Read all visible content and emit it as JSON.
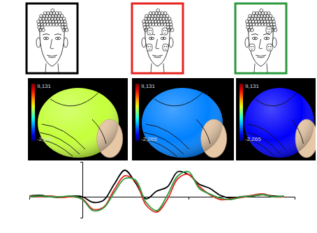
{
  "scalp_maps": {
    "color_min": {
      "value": -2.265,
      "label": "-2,265"
    },
    "color_max": {
      "value": 9.131,
      "label": "9,131"
    },
    "values": [
      4.2,
      0.6,
      -0.9
    ]
  },
  "chart_data": {
    "type": "line",
    "x": [
      -100,
      -80,
      -60,
      -40,
      -20,
      0,
      20,
      40,
      60,
      80,
      100,
      120,
      140,
      160,
      180,
      200,
      220,
      240,
      260,
      280,
      300,
      320,
      340,
      360,
      380
    ],
    "xlim": [
      -100,
      400
    ],
    "xticks": [
      200
    ],
    "ylim": [
      -3,
      5
    ],
    "yticks": [
      0
    ],
    "tick_labels": false,
    "series": [
      {
        "color": "#000000",
        "values": [
          0.1,
          0.2,
          0.0,
          -0.1,
          0.1,
          0.0,
          -0.8,
          -0.5,
          1.8,
          3.8,
          2.0,
          -0.3,
          0.8,
          1.4,
          3.6,
          3.2,
          1.8,
          1.2,
          0.2,
          -0.2,
          0.0,
          0.1,
          0.3,
          0.1,
          0.0
        ]
      },
      {
        "color": "#e8231f",
        "values": [
          0.1,
          0.0,
          0.1,
          -0.1,
          0.0,
          -0.3,
          -1.8,
          -1.5,
          1.0,
          3.0,
          2.2,
          -1.2,
          -2.2,
          -0.4,
          2.6,
          3.2,
          1.5,
          0.3,
          -0.4,
          -0.3,
          -0.1,
          0.2,
          0.4,
          0.0,
          0.0
        ]
      },
      {
        "color": "#2a9a3c",
        "values": [
          0.0,
          0.1,
          0.0,
          0.0,
          0.1,
          -0.4,
          -2.0,
          -1.6,
          0.6,
          2.6,
          2.4,
          -0.8,
          -2.0,
          0.2,
          3.0,
          3.6,
          1.2,
          0.4,
          -0.2,
          -0.4,
          0.0,
          0.1,
          0.3,
          0.0,
          0.1
        ]
      }
    ]
  }
}
